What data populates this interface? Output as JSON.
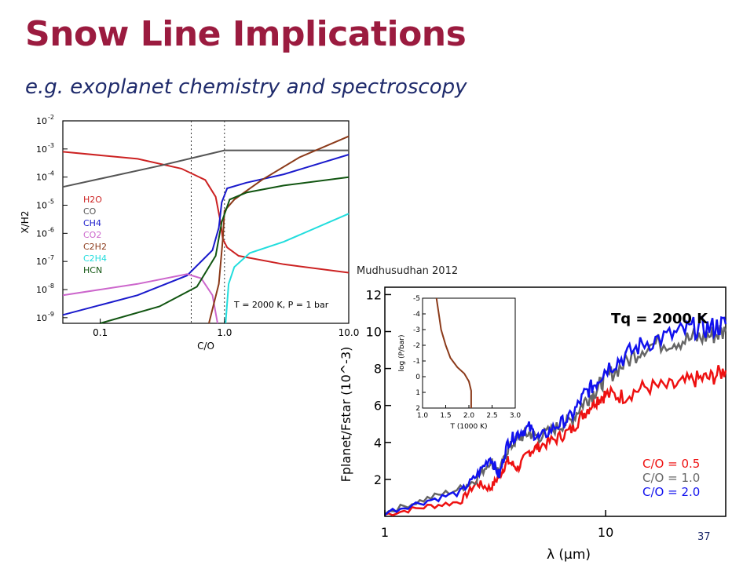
{
  "slide": {
    "title": "Snow Line Implications",
    "subtitle": "e.g. exoplanet chemistry and spectroscopy",
    "credit": "Mudhusudhan 2012",
    "page_number": "37"
  },
  "chart_data": [
    {
      "type": "line",
      "xlabel": "C/O",
      "ylabel": "X/H2",
      "x_scale": "log",
      "y_scale": "log",
      "xlim": [
        0.05,
        10.0
      ],
      "ylim_exp": [
        -9.2,
        -2
      ],
      "x_ticks": [
        {
          "v": 0.1,
          "label": "0.1"
        },
        {
          "v": 1.0,
          "label": "1.0"
        },
        {
          "v": 10.0,
          "label": "10.0"
        }
      ],
      "y_ticks": [
        {
          "e": -2,
          "label": "10^-2"
        },
        {
          "e": -3,
          "label": "10^-3"
        },
        {
          "e": -4,
          "label": "10^-4"
        },
        {
          "e": -5,
          "label": "10^-5"
        },
        {
          "e": -6,
          "label": "10^-6"
        },
        {
          "e": -7,
          "label": "10^-7"
        },
        {
          "e": -8,
          "label": "10^-8"
        },
        {
          "e": -9,
          "label": "10^-9"
        }
      ],
      "vlines": [
        0.54,
        1.0
      ],
      "annotation": "T = 2000 K, P = 1 bar",
      "series": [
        {
          "name": "H2O",
          "color": "#cc2222",
          "points": [
            [
              0.05,
              -3.1
            ],
            [
              0.2,
              -3.35
            ],
            [
              0.45,
              -3.7
            ],
            [
              0.7,
              -4.1
            ],
            [
              0.85,
              -4.7
            ],
            [
              0.93,
              -5.6
            ],
            [
              0.97,
              -6.2
            ],
            [
              1.05,
              -6.5
            ],
            [
              1.3,
              -6.8
            ],
            [
              3,
              -7.1
            ],
            [
              10,
              -7.4
            ]
          ]
        },
        {
          "name": "CO",
          "color": "#555555",
          "points": [
            [
              0.05,
              -4.35
            ],
            [
              0.3,
              -3.6
            ],
            [
              1.0,
              -3.05
            ],
            [
              10,
              -3.05
            ]
          ]
        },
        {
          "name": "CH4",
          "color": "#1a1acc",
          "points": [
            [
              0.05,
              -8.9
            ],
            [
              0.2,
              -8.2
            ],
            [
              0.5,
              -7.5
            ],
            [
              0.8,
              -6.6
            ],
            [
              0.9,
              -5.8
            ],
            [
              0.95,
              -4.9
            ],
            [
              1.05,
              -4.4
            ],
            [
              1.5,
              -4.2
            ],
            [
              3,
              -3.9
            ],
            [
              10,
              -3.2
            ]
          ]
        },
        {
          "name": "CO2",
          "color": "#cc66cc",
          "points": [
            [
              0.05,
              -8.2
            ],
            [
              0.2,
              -7.8
            ],
            [
              0.5,
              -7.45
            ],
            [
              0.65,
              -7.6
            ],
            [
              0.8,
              -8.2
            ],
            [
              0.88,
              -9.2
            ]
          ]
        },
        {
          "name": "C2H2",
          "color": "#8b3a1a",
          "points": [
            [
              0.75,
              -9.2
            ],
            [
              0.9,
              -7.8
            ],
            [
              0.97,
              -6.2
            ],
            [
              1.0,
              -5.2
            ],
            [
              1.2,
              -4.8
            ],
            [
              2,
              -4.1
            ],
            [
              4,
              -3.3
            ],
            [
              10,
              -2.55
            ]
          ]
        },
        {
          "name": "C2H4",
          "color": "#22dddd",
          "points": [
            [
              1.02,
              -9.2
            ],
            [
              1.08,
              -7.8
            ],
            [
              1.2,
              -7.2
            ],
            [
              1.6,
              -6.7
            ],
            [
              3,
              -6.3
            ],
            [
              10,
              -5.3
            ]
          ]
        },
        {
          "name": "HCN",
          "color": "#115511",
          "points": [
            [
              0.1,
              -9.2
            ],
            [
              0.3,
              -8.6
            ],
            [
              0.6,
              -7.9
            ],
            [
              0.85,
              -6.8
            ],
            [
              0.95,
              -5.6
            ],
            [
              1.1,
              -4.8
            ],
            [
              1.5,
              -4.55
            ],
            [
              3,
              -4.3
            ],
            [
              10,
              -4.0
            ]
          ]
        }
      ]
    },
    {
      "type": "line",
      "xlabel": "λ (μm)",
      "ylabel": "Fplanet/Fstar (10^-3)",
      "x_scale": "log",
      "xlim": [
        1,
        35
      ],
      "ylim": [
        0,
        12.4
      ],
      "x_ticks": [
        {
          "v": 1,
          "label": "1"
        },
        {
          "v": 10,
          "label": "10"
        }
      ],
      "y_ticks": [
        {
          "v": 2,
          "label": "2"
        },
        {
          "v": 4,
          "label": "4"
        },
        {
          "v": 6,
          "label": "6"
        },
        {
          "v": 8,
          "label": "8"
        },
        {
          "v": 10,
          "label": "10"
        },
        {
          "v": 12,
          "label": "12"
        }
      ],
      "annotation": "Tq = 2000 K",
      "series": [
        {
          "name": "C/O = 0.5",
          "color": "#ee1111",
          "points": [
            [
              1,
              0.1
            ],
            [
              1.5,
              0.5
            ],
            [
              2.2,
              0.8
            ],
            [
              2.6,
              1.8
            ],
            [
              3.0,
              1.5
            ],
            [
              3.3,
              2.2
            ],
            [
              3.6,
              3.0
            ],
            [
              4.0,
              2.6
            ],
            [
              4.5,
              3.5
            ],
            [
              5,
              3.8
            ],
            [
              6,
              4.2
            ],
            [
              7,
              4.7
            ],
            [
              8,
              5.6
            ],
            [
              9,
              6.3
            ],
            [
              10,
              6.6
            ],
            [
              12,
              6.5
            ],
            [
              15,
              7.0
            ],
            [
              20,
              7.0
            ],
            [
              25,
              7.4
            ],
            [
              30,
              7.5
            ],
            [
              35,
              7.9
            ]
          ]
        },
        {
          "name": "C/O = 1.0",
          "color": "#666666",
          "points": [
            [
              1,
              0.2
            ],
            [
              1.5,
              0.9
            ],
            [
              2.2,
              1.5
            ],
            [
              2.6,
              2.0
            ],
            [
              3.0,
              3.0
            ],
            [
              3.3,
              2.4
            ],
            [
              3.6,
              3.6
            ],
            [
              4.0,
              4.2
            ],
            [
              4.5,
              4.5
            ],
            [
              5,
              4.3
            ],
            [
              6,
              4.8
            ],
            [
              7,
              5.2
            ],
            [
              8,
              6.2
            ],
            [
              9,
              6.8
            ],
            [
              10,
              7.5
            ],
            [
              12,
              8.2
            ],
            [
              15,
              9.2
            ],
            [
              20,
              9.5
            ],
            [
              25,
              9.6
            ],
            [
              30,
              9.8
            ],
            [
              35,
              10.0
            ]
          ]
        },
        {
          "name": "C/O = 2.0",
          "color": "#1111ee",
          "points": [
            [
              1,
              0.2
            ],
            [
              1.5,
              0.8
            ],
            [
              2.2,
              1.3
            ],
            [
              2.6,
              2.2
            ],
            [
              3.0,
              3.2
            ],
            [
              3.3,
              2.2
            ],
            [
              3.6,
              4.0
            ],
            [
              4.0,
              4.5
            ],
            [
              4.5,
              4.8
            ],
            [
              5,
              4.2
            ],
            [
              6,
              4.9
            ],
            [
              7,
              5.4
            ],
            [
              8,
              6.6
            ],
            [
              9,
              7.2
            ],
            [
              10,
              8.0
            ],
            [
              12,
              8.6
            ],
            [
              15,
              9.4
            ],
            [
              20,
              9.8
            ],
            [
              25,
              10.2
            ],
            [
              30,
              10.2
            ],
            [
              35,
              10.4
            ]
          ]
        }
      ],
      "inset": {
        "xlabel": "T (1000 K)",
        "ylabel": "log (P/bar)",
        "xlim": [
          1.0,
          3.0
        ],
        "ylim": [
          -5,
          2
        ],
        "x_ticks": [
          {
            "v": 1.0,
            "label": "1.0"
          },
          {
            "v": 1.5,
            "label": "1.5"
          },
          {
            "v": 2.0,
            "label": "2.0"
          },
          {
            "v": 2.5,
            "label": "2.5"
          },
          {
            "v": 3.0,
            "label": "3.0"
          }
        ],
        "y_ticks": [
          {
            "v": -5,
            "label": "-5"
          },
          {
            "v": -4,
            "label": "-4"
          },
          {
            "v": -3,
            "label": "-3"
          },
          {
            "v": -2,
            "label": "-2"
          },
          {
            "v": -1,
            "label": "-1"
          },
          {
            "v": 0,
            "label": "0"
          },
          {
            "v": 1,
            "label": "1"
          },
          {
            "v": 2,
            "label": "2"
          }
        ],
        "color": "#8b3a1a",
        "points": [
          [
            1.3,
            -5
          ],
          [
            1.35,
            -4
          ],
          [
            1.4,
            -3
          ],
          [
            1.5,
            -2
          ],
          [
            1.6,
            -1.2
          ],
          [
            1.75,
            -0.6
          ],
          [
            1.9,
            -0.2
          ],
          [
            2.0,
            0.3
          ],
          [
            2.05,
            0.9
          ],
          [
            2.05,
            2.0
          ]
        ]
      }
    }
  ]
}
